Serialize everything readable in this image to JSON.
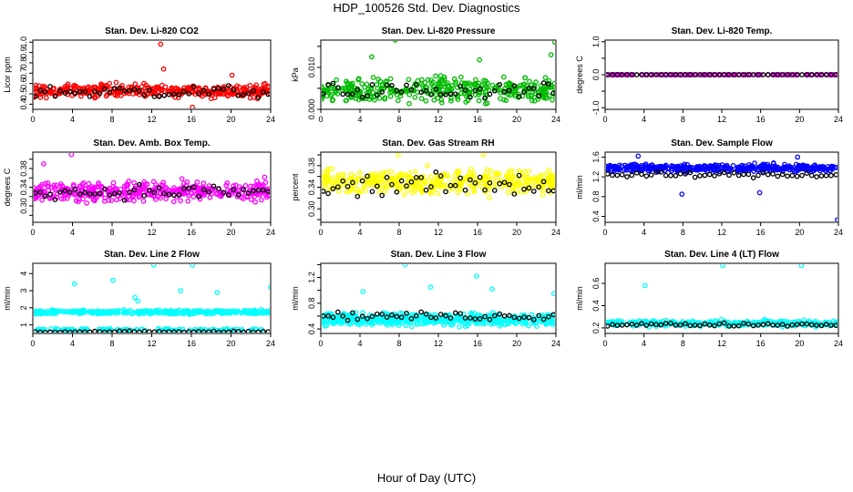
{
  "page": {
    "title": "HDP_100526  Std. Dev. Diagnostics",
    "xlabel": "Hour of Day (UTC)"
  },
  "chart_data": [
    {
      "type": "scatter",
      "title": "Stan. Dev. Li-820 CO2",
      "ylabel": "Licor ppm",
      "color": "#ff0000",
      "xlim": [
        0,
        24
      ],
      "xticks": [
        0,
        4,
        8,
        12,
        16,
        20,
        24
      ],
      "ylim": [
        0.35,
        1.02
      ],
      "yticks": [
        0.4,
        0.5,
        0.6,
        0.7,
        0.8,
        0.9,
        1.0
      ],
      "ytick_labels": [
        "0.4",
        "0.5",
        "0.6",
        "0.7",
        "0.8",
        "0.9",
        "1.0"
      ],
      "base": 0.53,
      "spread": 0.06,
      "n": 380,
      "black_base": 0.52,
      "black_spread": 0.06,
      "outliers": [
        [
          12.9,
          0.98
        ],
        [
          13.2,
          0.74
        ],
        [
          16.1,
          0.37
        ],
        [
          20.1,
          0.68
        ]
      ]
    },
    {
      "type": "scatter",
      "title": "Stan. Dev. Li-820 Pressure",
      "ylabel": "kPa",
      "color": "#00bb00",
      "xlim": [
        0,
        24
      ],
      "xticks": [
        0,
        4,
        8,
        12,
        16,
        20,
        24
      ],
      "ylim": [
        0,
        0.0165
      ],
      "yticks": [
        0,
        0.005,
        0.01,
        0.015
      ],
      "ytick_labels": [
        "0.000",
        "",
        "0.010",
        ""
      ],
      "base": 0.0045,
      "spread": 0.0028,
      "n": 380,
      "black_base": 0.0045,
      "black_spread": 0.002,
      "outliers": [
        [
          7.6,
          0.0165
        ],
        [
          23.9,
          0.016
        ],
        [
          23.5,
          0.013
        ],
        [
          5.2,
          0.0125
        ],
        [
          16.2,
          0.0118
        ]
      ]
    },
    {
      "type": "scatter",
      "title": "Stan. Dev. Li-820 Temp.",
      "ylabel": "degrees C",
      "color": "#ff00ff",
      "xlim": [
        0,
        24
      ],
      "xticks": [
        0,
        4,
        8,
        12,
        16,
        20,
        24
      ],
      "ylim": [
        -1.05,
        1.05
      ],
      "yticks": [
        -1,
        -0.5,
        0,
        0.5,
        1
      ],
      "ytick_labels": [
        "-1.0",
        "",
        "0.0",
        "",
        "1.0"
      ],
      "base": 0,
      "spread": 0,
      "n": 150,
      "black_base": 0,
      "black_spread": 0,
      "outliers": []
    },
    {
      "type": "scatter",
      "title": "Stan. Dev. Amb. Box Temp.",
      "ylabel": "degrees C",
      "color": "#ff00ff",
      "xlim": [
        0,
        24
      ],
      "xticks": [
        0,
        4,
        8,
        12,
        16,
        20,
        24
      ],
      "ylim": [
        0.265,
        0.415
      ],
      "yticks": [
        0.28,
        0.3,
        0.32,
        0.34,
        0.36,
        0.38,
        0.4
      ],
      "ytick_labels": [
        "",
        "0.30",
        "",
        "0.34",
        "",
        "0.38",
        ""
      ],
      "base": 0.332,
      "spread": 0.02,
      "n": 400,
      "black_base": 0.33,
      "black_spread": 0.015,
      "outliers": [
        [
          3.9,
          0.41
        ],
        [
          1.1,
          0.39
        ]
      ]
    },
    {
      "type": "scatter",
      "title": "Stan. Dev. Gas Stream RH",
      "ylabel": "percent",
      "color": "#ffff00",
      "xlim": [
        0,
        24
      ],
      "xticks": [
        0,
        4,
        8,
        12,
        16,
        20,
        24
      ],
      "ylim": [
        0.275,
        0.405
      ],
      "yticks": [
        0.28,
        0.3,
        0.32,
        0.34,
        0.36,
        0.38,
        0.4
      ],
      "ytick_labels": [
        "",
        "0.30",
        "",
        "0.34",
        "",
        "0.38",
        ""
      ],
      "base": 0.35,
      "spread": 0.022,
      "n": 420,
      "black_base": 0.345,
      "black_spread": 0.02,
      "outliers": [
        [
          16.6,
          0.4
        ],
        [
          7.9,
          0.4
        ]
      ]
    },
    {
      "type": "scatter",
      "title": "Stan. Dev. Sample Flow",
      "ylabel": "ml/min",
      "color": "#0000ff",
      "xlim": [
        0,
        24
      ],
      "xticks": [
        0,
        4,
        8,
        12,
        16,
        20,
        24
      ],
      "ylim": [
        0.28,
        1.7
      ],
      "yticks": [
        0.4,
        0.8,
        1.2,
        1.6
      ],
      "ytick_labels": [
        "0.4",
        "0.8",
        "1.2",
        "1.6"
      ],
      "base": 1.38,
      "spread": 0.07,
      "n": 420,
      "black_base": 1.24,
      "black_spread": 0.05,
      "outliers": [
        [
          23.9,
          0.33
        ],
        [
          7.9,
          0.85
        ],
        [
          15.9,
          0.88
        ],
        [
          19.8,
          1.6
        ],
        [
          3.4,
          1.62
        ]
      ]
    },
    {
      "type": "scatter",
      "title": "Stan. Dev. Line 2 Flow",
      "ylabel": "ml/min",
      "color": "#00ffff",
      "xlim": [
        0,
        24
      ],
      "xticks": [
        0,
        4,
        8,
        12,
        16,
        20,
        24
      ],
      "ylim": [
        0.5,
        4.6
      ],
      "yticks": [
        1,
        2,
        3,
        4
      ],
      "ytick_labels": [
        "1",
        "2",
        "3",
        "4"
      ],
      "base": 1.75,
      "spread": 0.1,
      "n": 360,
      "black_base": 0.6,
      "black_spread": 0.04,
      "second_base": 0.72,
      "second_spread": 0.05,
      "outliers": [
        [
          4.2,
          3.4
        ],
        [
          8.1,
          3.6
        ],
        [
          12.2,
          4.5
        ],
        [
          16.1,
          4.5
        ],
        [
          24,
          3.2
        ],
        [
          10.3,
          2.6
        ],
        [
          10.6,
          2.4
        ],
        [
          14.9,
          3.0
        ],
        [
          18.6,
          2.9
        ]
      ]
    },
    {
      "type": "scatter",
      "title": "Stan. Dev. Line 3 Flow",
      "ylabel": "ml/min",
      "color": "#00ffff",
      "xlim": [
        0,
        24
      ],
      "xticks": [
        0,
        4,
        8,
        12,
        16,
        20,
        24
      ],
      "ylim": [
        0.33,
        1.42
      ],
      "yticks": [
        0.4,
        0.6,
        0.8,
        1.0,
        1.2,
        1.4
      ],
      "ytick_labels": [
        "0.4",
        "",
        "0.8",
        "",
        "1.2",
        ""
      ],
      "base": 0.55,
      "spread": 0.09,
      "n": 520,
      "black_base": 0.6,
      "black_spread": 0.06,
      "outliers": [
        [
          8.6,
          1.4
        ],
        [
          15.9,
          1.22
        ],
        [
          11.2,
          1.05
        ],
        [
          23.8,
          0.95
        ],
        [
          17.5,
          1.02
        ],
        [
          4.3,
          0.98
        ]
      ]
    },
    {
      "type": "scatter",
      "title": "Stan. Dev. Line 4 (LT) Flow",
      "ylabel": "ml/min",
      "color": "#00ffff",
      "xlim": [
        0,
        24
      ],
      "xticks": [
        0,
        4,
        8,
        12,
        16,
        20,
        24
      ],
      "ylim": [
        0.15,
        0.78
      ],
      "yticks": [
        0.2,
        0.4,
        0.6
      ],
      "ytick_labels": [
        "0.2",
        "0.4",
        "0.6"
      ],
      "base": 0.24,
      "spread": 0.025,
      "n": 300,
      "black_base": 0.23,
      "black_spread": 0.015,
      "outliers": [
        [
          4.1,
          0.58
        ],
        [
          12.1,
          0.76
        ],
        [
          20.2,
          0.76
        ]
      ]
    }
  ]
}
